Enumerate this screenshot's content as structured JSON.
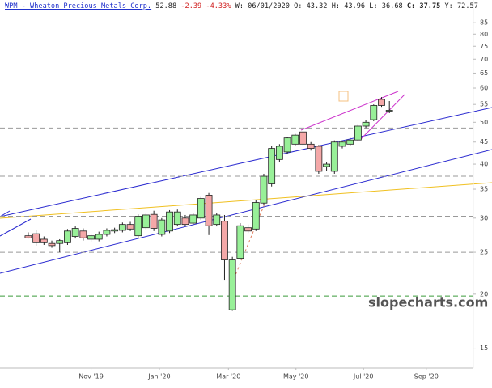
{
  "header": {
    "price": "52.88",
    "change": "-2.39",
    "change_pct": "-4.33%",
    "week": "W: 06/01/2020",
    "open": "O: 43.32",
    "high": "H: 43.96",
    "low": "L: 36.68",
    "close_label": "C:",
    "close": "37.75",
    "year": "Y: 72.57"
  },
  "watermark": "slopecharts.com",
  "chart_data": {
    "type": "candlestick",
    "title": "WPM - Wheaton Precious Metals Corp.",
    "log_scale": true,
    "up_color": "#98f098",
    "down_color": "#f4a8a8",
    "open": [
      27.3,
      27.6,
      26.8,
      26.2,
      26.2,
      26.3,
      27.2,
      28.0,
      26.8,
      26.8,
      27.5,
      28.0,
      28.1,
      29.0,
      27.3,
      28.5,
      30.6,
      27.5,
      28.0,
      29.0,
      30.0,
      29.2,
      30.0,
      33.9,
      29.0,
      29.5,
      18.4,
      24.2,
      28.5,
      28.3,
      32.5,
      36.0,
      41.0,
      42.7,
      44.5,
      47.5,
      44.5,
      44.0,
      39.5,
      38.5,
      44.0,
      44.5,
      45.5,
      49.0,
      50.7,
      56.5,
      53.2
    ],
    "high": [
      27.8,
      28.2,
      27.2,
      26.6,
      26.8,
      28.3,
      28.7,
      28.4,
      27.6,
      27.9,
      28.4,
      28.5,
      29.3,
      29.4,
      30.6,
      30.8,
      31.2,
      30.0,
      31.3,
      31.4,
      30.5,
      30.8,
      33.6,
      34.3,
      30.8,
      30.5,
      24.4,
      29.2,
      29.0,
      33.0,
      38.0,
      44.0,
      44.5,
      46.3,
      47.0,
      48.0,
      45.0,
      44.3,
      40.4,
      45.4,
      45.3,
      46.0,
      49.3,
      50.5,
      55.0,
      57.2,
      56.0
    ],
    "low": [
      26.9,
      25.9,
      26.0,
      25.6,
      25.0,
      26.0,
      26.9,
      26.6,
      26.4,
      26.5,
      27.2,
      27.7,
      27.8,
      28.0,
      27.0,
      28.2,
      28.0,
      27.2,
      27.7,
      28.7,
      28.7,
      28.9,
      29.7,
      27.4,
      28.7,
      21.5,
      18.3,
      24.0,
      27.7,
      28.0,
      32.2,
      35.5,
      40.5,
      42.2,
      44.0,
      44.0,
      43.0,
      38.0,
      38.5,
      38.0,
      43.5,
      44.0,
      45.2,
      48.5,
      50.3,
      54.3,
      52.5
    ],
    "close": [
      27.0,
      26.3,
      26.3,
      25.9,
      26.6,
      28.0,
      28.4,
      27.0,
      27.3,
      27.5,
      28.1,
      28.2,
      29.0,
      28.3,
      30.3,
      30.5,
      28.4,
      29.7,
      31.0,
      31.0,
      29.0,
      30.5,
      33.3,
      28.8,
      30.5,
      24.0,
      24.0,
      28.8,
      28.0,
      32.6,
      37.5,
      43.5,
      44.0,
      46.0,
      46.7,
      44.5,
      43.5,
      38.5,
      40.0,
      45.0,
      45.0,
      45.5,
      49.0,
      50.0,
      54.7,
      54.7,
      53.3
    ],
    "levels": [
      {
        "value": 48.5,
        "color": "#999999"
      },
      {
        "value": 37.5,
        "color": "#999999"
      },
      {
        "value": 30.3,
        "color": "#999999"
      },
      {
        "value": 25,
        "color": "#999999"
      },
      {
        "value": 19.8,
        "color": "#3a9a3a"
      }
    ],
    "xlim": [
      -3.6,
      56.7
    ],
    "xticks": [
      {
        "value": 8,
        "label": "Nov '19"
      },
      {
        "value": 16.7,
        "label": "Jan '20"
      },
      {
        "value": 25.5,
        "label": "Mar '20"
      },
      {
        "value": 34.1,
        "label": "May '20"
      },
      {
        "value": 42.7,
        "label": "Jul '20"
      },
      {
        "value": 50.7,
        "label": "Sep '20"
      }
    ],
    "ylim": [
      13.5,
      96
    ],
    "yticks": [
      15,
      20,
      25,
      30,
      35,
      40,
      45,
      50,
      55,
      60,
      65,
      70,
      75,
      80,
      85
    ]
  }
}
